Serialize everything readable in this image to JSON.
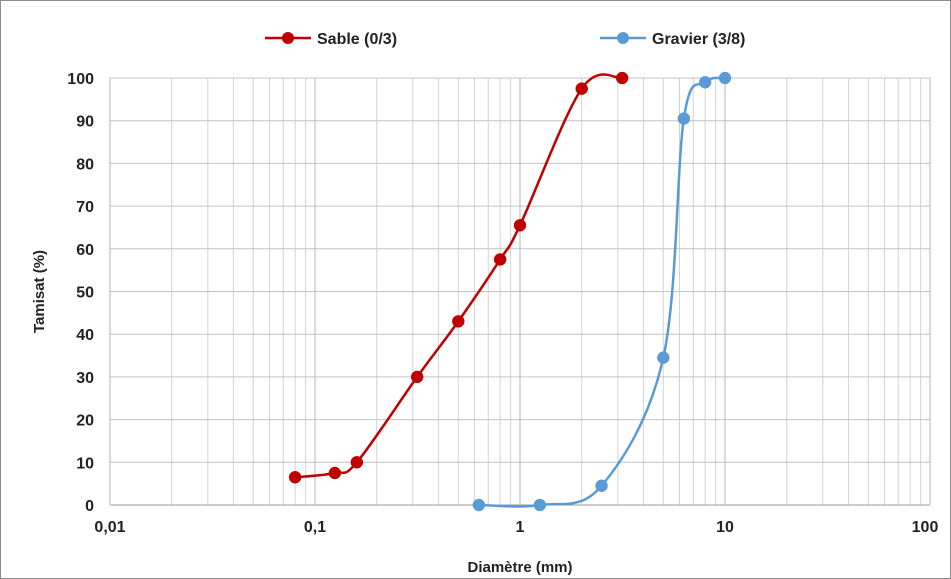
{
  "chart_data": {
    "type": "line",
    "title": "",
    "xlabel": "Diamètre  (mm)",
    "ylabel": "Tamisat (%)",
    "xscale": "log",
    "xlim": [
      0.01,
      100
    ],
    "ylim": [
      0,
      100
    ],
    "x_ticks": [
      0.01,
      0.1,
      1,
      10,
      100
    ],
    "x_tick_labels": [
      "0,01",
      "0,1",
      "1",
      "10",
      "100"
    ],
    "y_ticks": [
      0,
      10,
      20,
      30,
      40,
      50,
      60,
      70,
      80,
      90,
      100
    ],
    "y_tick_labels": [
      "0",
      "10",
      "20",
      "30",
      "40",
      "50",
      "60",
      "70",
      "80",
      "90",
      "100"
    ],
    "grid": true,
    "legend_position": "top",
    "series": [
      {
        "name": "Sable (0/3)",
        "color": "#c00000",
        "x": [
          0.08,
          0.125,
          0.16,
          0.315,
          0.5,
          0.8,
          1,
          2,
          3.15
        ],
        "y": [
          6.5,
          7.5,
          10,
          30,
          43,
          57.5,
          65.5,
          97.5,
          100
        ]
      },
      {
        "name": "Gravier (3/8)",
        "color": "#5b9bd5",
        "x": [
          0.63,
          1.25,
          2.5,
          5,
          6.3,
          8,
          10
        ],
        "y": [
          0,
          0,
          4.5,
          34.5,
          90.5,
          99,
          100
        ]
      }
    ]
  }
}
